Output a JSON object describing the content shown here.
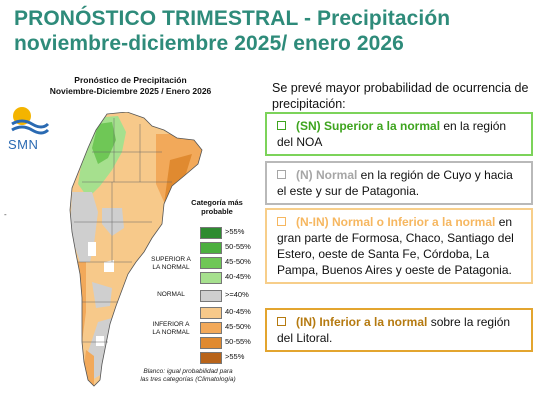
{
  "header": {
    "title_line1": "PRONÓSTICO TRIMESTRAL - Precipitación",
    "title_line2": "noviembre-diciembre 2025/ enero 2026"
  },
  "map": {
    "title_line1": "Pronóstico de Precipitación",
    "title_line2": "Noviembre-Diciembre 2025 / Enero 2026",
    "logo_text": "SMN",
    "legend_title_line1": "Categoría más",
    "legend_title_line2": "probable",
    "legend_groups": {
      "superior_line1": "SUPERIOR A",
      "superior_line2": "LA NORMAL",
      "normal": "NORMAL",
      "inferior_line1": "INFERIOR A",
      "inferior_line2": "LA NORMAL"
    },
    "legend": [
      {
        "label": ">55%",
        "color": "#2e8b30"
      },
      {
        "label": "50-55%",
        "color": "#4caf3f"
      },
      {
        "label": "45-50%",
        "color": "#6fc756"
      },
      {
        "label": "40-45%",
        "color": "#a6e08e"
      },
      {
        "label": ">=40%",
        "color": "#cfcfcf"
      },
      {
        "label": "40-45%",
        "color": "#f7c98a"
      },
      {
        "label": "45-50%",
        "color": "#f2a95a"
      },
      {
        "label": "50-55%",
        "color": "#e08a30"
      },
      {
        "label": ">55%",
        "color": "#b8641a"
      }
    ],
    "note_line1": "Blanco: igual probabilidad para",
    "note_line2": "las tres categorías (Climatología)"
  },
  "summary": {
    "intro": "Se prevé mayor probabilidad de ocurrencia de precipitación:",
    "items": [
      {
        "highlight": "(SN) Superior a la normal",
        "text": " en la región del NOA"
      },
      {
        "highlight": "(N) Normal",
        "text": " en la región de Cuyo y hacia el este y sur de Patagonia."
      },
      {
        "highlight": "(N-IN) Normal o Inferior a la normal",
        "text": " en gran parte de Formosa, Chaco, Santiago del Estero, oeste de Santa Fe, Córdoba, La Pampa, Buenos Aires y oeste de Patagonia."
      },
      {
        "highlight": "(IN) Inferior a la normal",
        "text": " sobre la región del Litoral."
      }
    ]
  }
}
